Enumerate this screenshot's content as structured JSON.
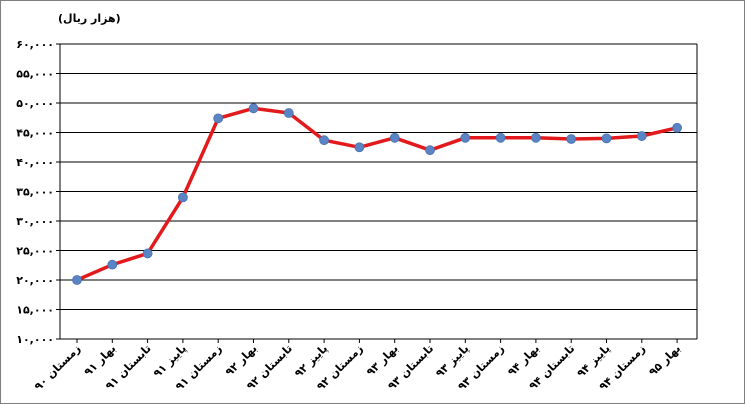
{
  "chart_data": {
    "type": "line",
    "unit_label": "(هزار ریال)",
    "categories": [
      "زمستان ۹۰",
      "بهار ۹۱",
      "تابستان ۹۱",
      "پاییز ۹۱",
      "زمستان ۹۱",
      "بهار ۹۲",
      "تابستان ۹۲",
      "پاییز ۹۲",
      "زمستان ۹۲",
      "بهار ۹۳",
      "تابستان ۹۳",
      "پاییز ۹۳",
      "زمستان ۹۳",
      "بهار ۹۴",
      "تابستان ۹۴",
      "پاییز ۹۴",
      "زمستان ۹۴",
      "بهار ۹۵"
    ],
    "values": [
      20000,
      22600,
      24500,
      34000,
      47400,
      49100,
      48300,
      43700,
      42500,
      44100,
      42000,
      44100,
      44100,
      44100,
      43900,
      44000,
      44400,
      45800
    ],
    "ylim": [
      10000,
      60000
    ],
    "yticks": [
      10000,
      15000,
      20000,
      25000,
      30000,
      35000,
      40000,
      45000,
      50000,
      55000,
      60000
    ],
    "ytick_labels": [
      "۱۰,۰۰۰",
      "۱۵,۰۰۰",
      "۲۰,۰۰۰",
      "۲۵,۰۰۰",
      "۳۰,۰۰۰",
      "۳۵,۰۰۰",
      "۴۰,۰۰۰",
      "۴۵,۰۰۰",
      "۵۰,۰۰۰",
      "۵۵,۰۰۰",
      "۶۰,۰۰۰"
    ],
    "grid": true,
    "line_color": "#e31a1c",
    "marker_color": "#5b84c4"
  }
}
